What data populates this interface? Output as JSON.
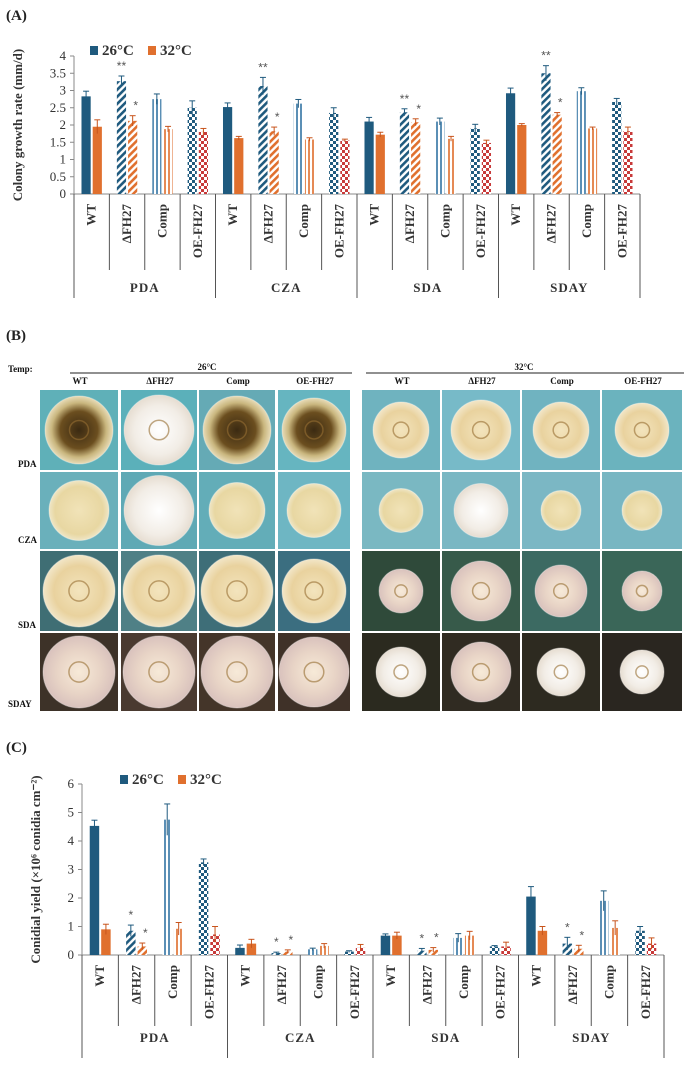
{
  "colors": {
    "c26": "#1f5a7e",
    "c32": "#e0702e"
  },
  "panel_A": {
    "label": "(A)",
    "chart_data": {
      "type": "bar",
      "ylabel": "Colony growth rate (mm/d)",
      "ylim": [
        0,
        4
      ],
      "yticks": [
        "0",
        "0.5",
        "1",
        "1.5",
        "2",
        "2.5",
        "3",
        "3.5",
        "4"
      ],
      "legend": [
        "26°C",
        "32°C"
      ],
      "groups": [
        "PDA",
        "CZA",
        "SDA",
        "SDAY"
      ],
      "strains": [
        "WT",
        "ΔFH27",
        "Comp",
        "OE-FH27"
      ],
      "series": [
        {
          "name": "26°C",
          "values": [
            2.83,
            3.27,
            2.75,
            2.5,
            2.52,
            3.13,
            2.62,
            2.35,
            2.1,
            2.37,
            2.1,
            1.9,
            2.92,
            3.5,
            2.98,
            2.67
          ],
          "errors": [
            0.15,
            0.15,
            0.15,
            0.2,
            0.12,
            0.25,
            0.12,
            0.15,
            0.12,
            0.1,
            0.1,
            0.12,
            0.15,
            0.22,
            0.1,
            0.1
          ]
        },
        {
          "name": "32°C",
          "values": [
            1.95,
            2.12,
            1.88,
            1.8,
            1.62,
            1.82,
            1.58,
            1.55,
            1.72,
            2.08,
            1.6,
            1.48,
            2.0,
            2.3,
            1.9,
            1.82
          ],
          "errors": [
            0.2,
            0.15,
            0.08,
            0.1,
            0.05,
            0.12,
            0.05,
            0.04,
            0.07,
            0.1,
            0.07,
            0.08,
            0.04,
            0.06,
            0.04,
            0.12
          ]
        }
      ],
      "annotations": [
        {
          "index": 1,
          "series": 0,
          "text": "**"
        },
        {
          "index": 1,
          "series": 1,
          "text": "*"
        },
        {
          "index": 5,
          "series": 0,
          "text": "**"
        },
        {
          "index": 5,
          "series": 1,
          "text": "*"
        },
        {
          "index": 9,
          "series": 0,
          "text": "**"
        },
        {
          "index": 9,
          "series": 1,
          "text": "*"
        },
        {
          "index": 13,
          "series": 0,
          "text": "**"
        },
        {
          "index": 13,
          "series": 1,
          "text": "*"
        }
      ]
    }
  },
  "panel_B": {
    "label": "(B)",
    "temp_label": "Temp:",
    "temps": [
      "26°C",
      "32°C"
    ],
    "strains": [
      "WT",
      "ΔFH27",
      "Comp",
      "OE-FH27"
    ],
    "media": [
      "PDA",
      "CZA",
      "SDA",
      "SDAY"
    ]
  },
  "panel_C": {
    "label": "(C)",
    "chart_data": {
      "type": "bar",
      "ylabel": "Conidial yield (×10⁶ conidia cm⁻²)",
      "ylim": [
        0,
        6
      ],
      "yticks": [
        "0",
        "1",
        "2",
        "3",
        "4",
        "5",
        "6"
      ],
      "legend": [
        "26°C",
        "32°C"
      ],
      "groups": [
        "PDA",
        "CZA",
        "SDA",
        "SDAY"
      ],
      "strains": [
        "WT",
        "ΔFH27",
        "Comp",
        "OE-FH27"
      ],
      "series": [
        {
          "name": "26°C",
          "values": [
            4.53,
            0.85,
            4.75,
            3.25,
            0.25,
            0.07,
            0.2,
            0.12,
            0.68,
            0.15,
            0.6,
            0.3,
            2.05,
            0.4,
            1.9,
            0.85
          ],
          "errors": [
            0.2,
            0.2,
            0.55,
            0.12,
            0.1,
            0.03,
            0.04,
            0.03,
            0.06,
            0.08,
            0.15,
            0.03,
            0.35,
            0.22,
            0.35,
            0.15
          ]
        },
        {
          "name": "32°C",
          "values": [
            0.9,
            0.3,
            0.92,
            0.72,
            0.4,
            0.12,
            0.32,
            0.25,
            0.68,
            0.18,
            0.68,
            0.3,
            0.85,
            0.22,
            0.95,
            0.4
          ],
          "errors": [
            0.18,
            0.12,
            0.22,
            0.28,
            0.15,
            0.06,
            0.08,
            0.12,
            0.12,
            0.08,
            0.15,
            0.15,
            0.15,
            0.12,
            0.25,
            0.2
          ]
        }
      ],
      "annotations": [
        {
          "index": 1,
          "series": 0,
          "text": "*"
        },
        {
          "index": 1,
          "series": 1,
          "text": "*"
        },
        {
          "index": 5,
          "series": 0,
          "text": "*"
        },
        {
          "index": 5,
          "series": 1,
          "text": "*"
        },
        {
          "index": 9,
          "series": 0,
          "text": "*"
        },
        {
          "index": 9,
          "series": 1,
          "text": "*"
        },
        {
          "index": 13,
          "series": 0,
          "text": "*"
        },
        {
          "index": 13,
          "series": 1,
          "text": "*"
        }
      ]
    }
  }
}
